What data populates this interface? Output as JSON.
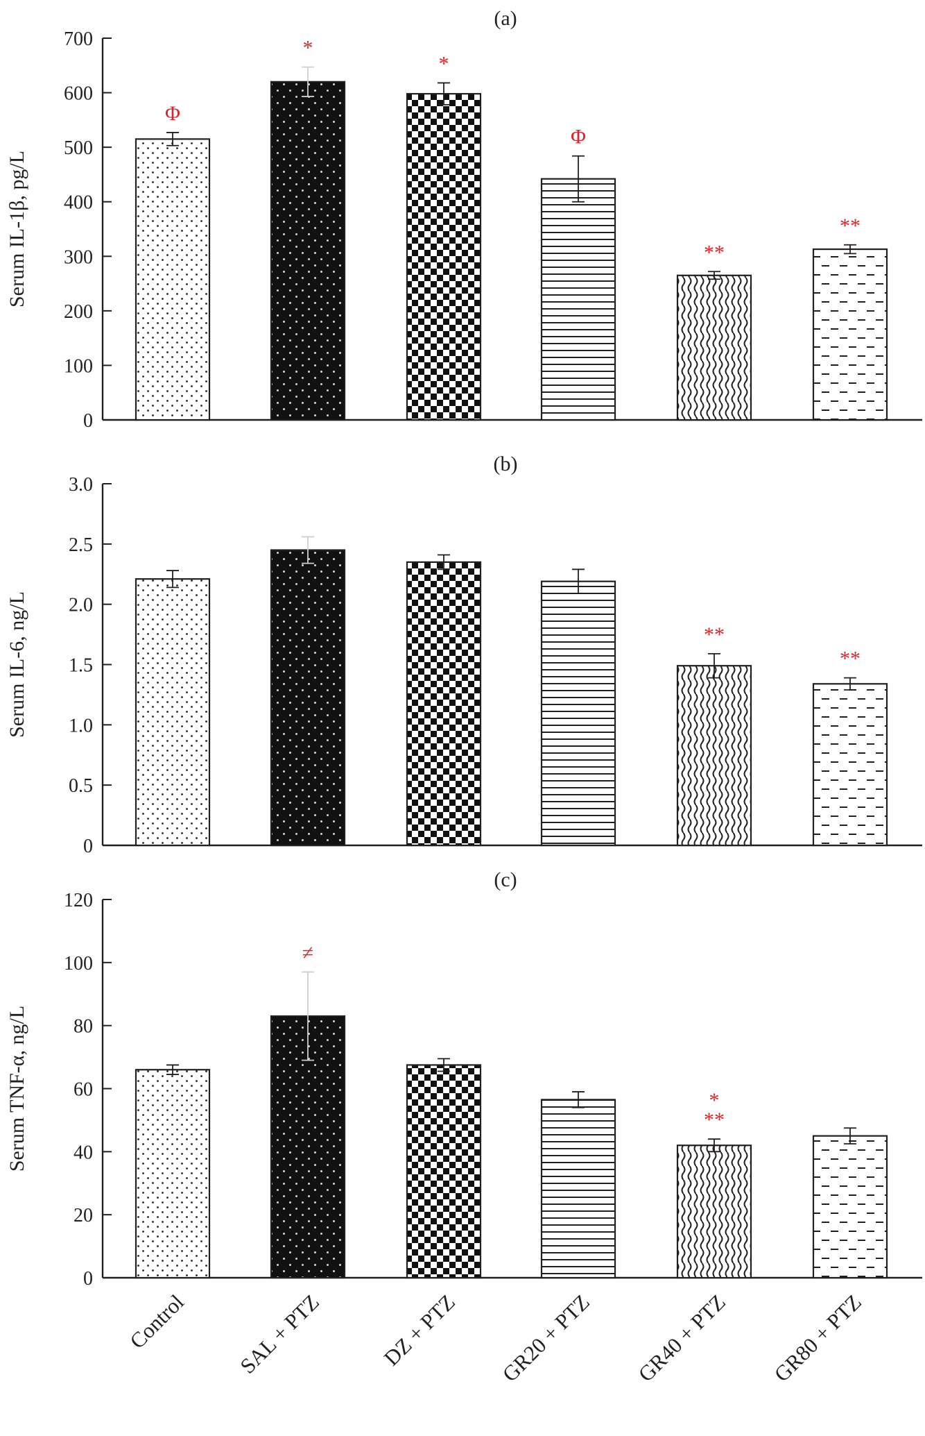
{
  "chart_data": [
    {
      "type": "bar",
      "title": "(a)",
      "ylabel": "Serum IL-1β, pg/L",
      "ylim": [
        0,
        700
      ],
      "yticks": [
        "0",
        "100",
        "200",
        "300",
        "400",
        "500",
        "600",
        "700"
      ],
      "yticks_values": [
        0,
        100,
        200,
        300,
        400,
        500,
        600,
        700
      ],
      "categories": [
        "Control",
        "SAL + PTZ",
        "DZ + PTZ",
        "GR20 + PTZ",
        "GR40 + PTZ",
        "GR80 + PTZ"
      ],
      "values": [
        515,
        620,
        598,
        442,
        265,
        313
      ],
      "errors": [
        12,
        27,
        20,
        42,
        7,
        8
      ],
      "annotations": [
        "Φ",
        "*",
        "*",
        "Φ",
        "**",
        "**"
      ]
    },
    {
      "type": "bar",
      "title": "(b)",
      "ylabel": "Serum IL-6, ng/L",
      "ylim": [
        0,
        3.0
      ],
      "yticks": [
        "0",
        "0.5",
        "1.0",
        "1.5",
        "2.0",
        "2.5",
        "3.0"
      ],
      "yticks_values": [
        0,
        0.5,
        1.0,
        1.5,
        2.0,
        2.5,
        3.0
      ],
      "categories": [
        "Control",
        "SAL + PTZ",
        "DZ + PTZ",
        "GR20 + PTZ",
        "GR40 + PTZ",
        "GR80 + PTZ"
      ],
      "values": [
        2.21,
        2.45,
        2.35,
        2.19,
        1.49,
        1.34
      ],
      "errors": [
        0.07,
        0.11,
        0.06,
        0.1,
        0.1,
        0.05
      ],
      "annotations": [
        "",
        "",
        "",
        "",
        "**",
        "**"
      ]
    },
    {
      "type": "bar",
      "title": "(c)",
      "ylabel": "Serum TNF-α, ng/L",
      "ylim": [
        0,
        120
      ],
      "yticks": [
        "0",
        "20",
        "40",
        "60",
        "80",
        "100",
        "120"
      ],
      "yticks_values": [
        0,
        20,
        40,
        60,
        80,
        100,
        120
      ],
      "categories": [
        "Control",
        "SAL + PTZ",
        "DZ + PTZ",
        "GR20 + PTZ",
        "GR40 + PTZ",
        "GR80 + PTZ"
      ],
      "values": [
        66,
        83,
        67.5,
        56.5,
        42,
        45
      ],
      "errors": [
        1.5,
        14,
        2,
        2.5,
        2,
        2.5
      ],
      "annotations": [
        "",
        "≠",
        "",
        "",
        "*\n**",
        ""
      ]
    }
  ],
  "colors": {
    "ink": "#231f20",
    "significance": "#d7262b",
    "paper": "#ffffff"
  }
}
